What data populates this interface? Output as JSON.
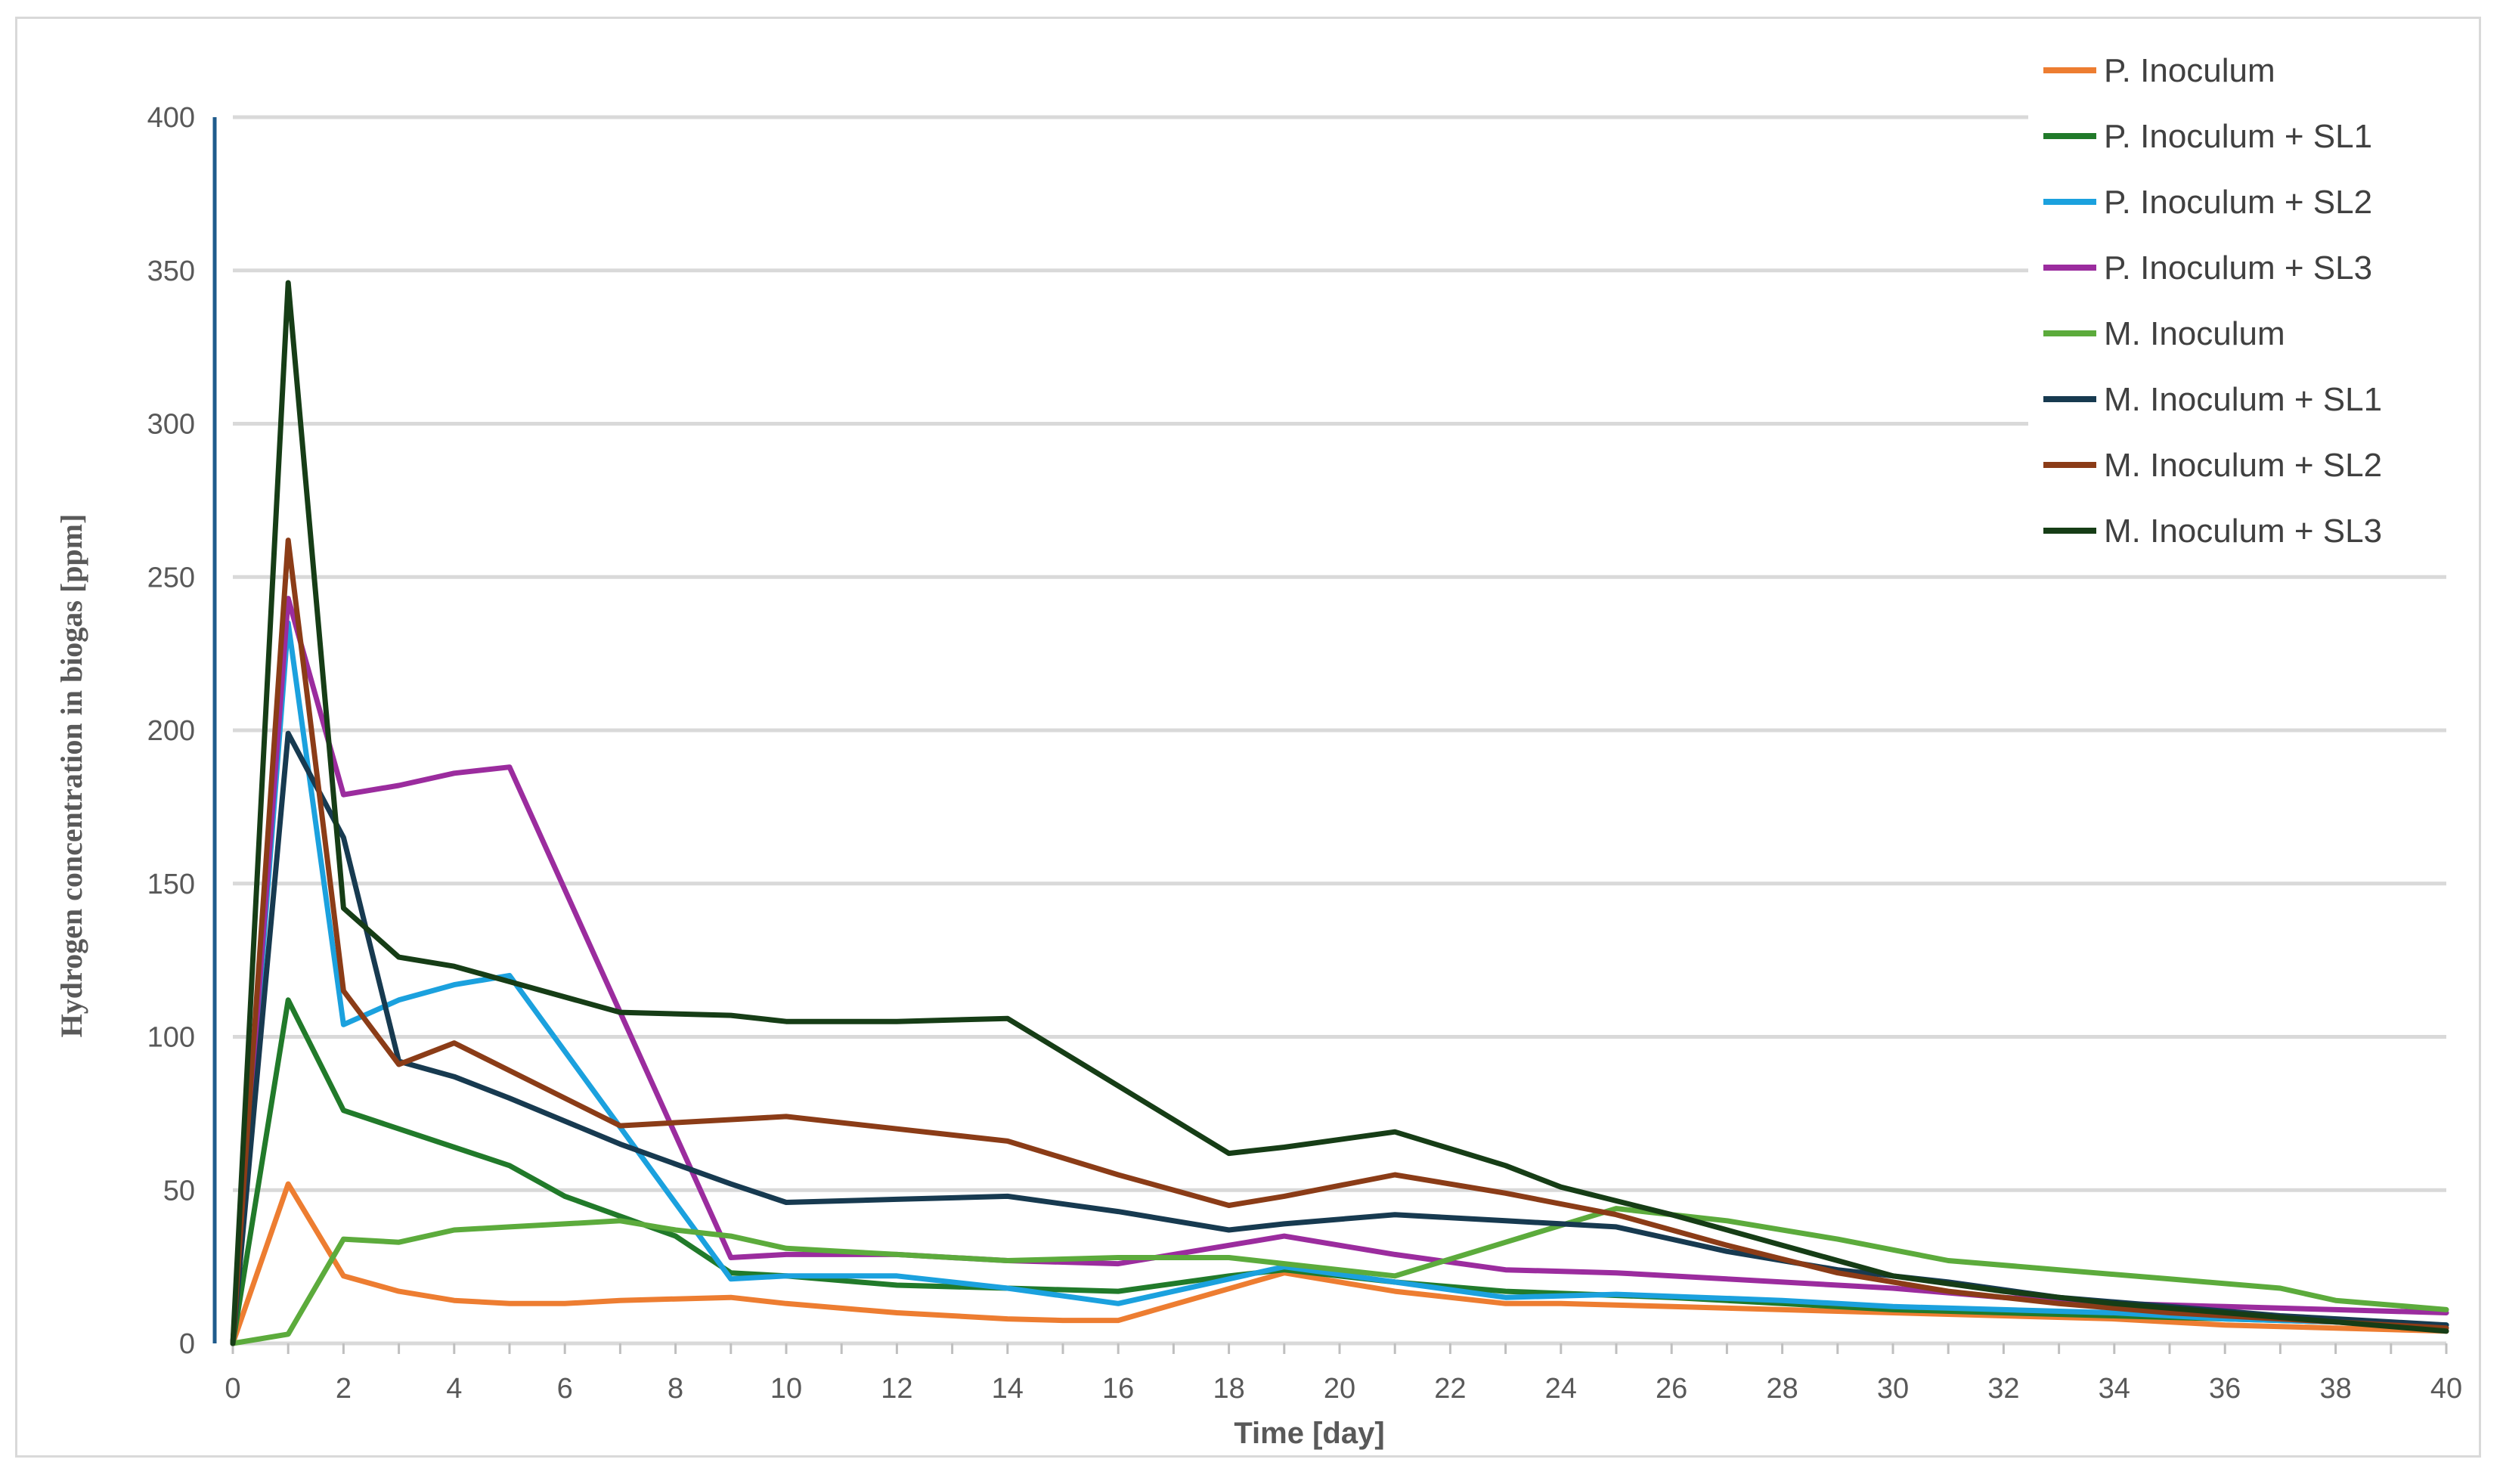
{
  "chart_data": {
    "type": "line",
    "title": "",
    "xlabel": "Time [day]",
    "ylabel": "Hydrogen concentration in biogas [ppm]",
    "xlim": [
      0,
      40
    ],
    "ylim": [
      0,
      400
    ],
    "x_ticks": [
      "0",
      "2",
      "4",
      "6",
      "8",
      "10",
      "12",
      "14",
      "16",
      "18",
      "20",
      "22",
      "24",
      "26",
      "28",
      "30",
      "32",
      "34",
      "36",
      "38",
      "40"
    ],
    "y_ticks": [
      "0",
      "50",
      "100",
      "150",
      "200",
      "250",
      "300",
      "350",
      "400"
    ],
    "grid": "horizontal",
    "legend_position": "top-right",
    "series": [
      {
        "name": "P. Inoculum",
        "color": "#ED7D31",
        "x": [
          0,
          1,
          2,
          3,
          4,
          5,
          6,
          7,
          9,
          10,
          12,
          14,
          15,
          16,
          19,
          21,
          23,
          24,
          26,
          28,
          30,
          32,
          34,
          36,
          38,
          40
        ],
        "y": [
          0,
          52,
          22,
          17,
          14,
          13,
          13,
          14,
          15,
          13,
          10,
          8,
          7.5,
          7.5,
          23,
          17,
          13,
          13,
          12,
          11,
          10,
          9,
          8,
          6,
          5,
          4
        ]
      },
      {
        "name": "P. Inoculum + SL1",
        "color": "#217A2A",
        "x": [
          0,
          1,
          2,
          3,
          4,
          5,
          6,
          8,
          9,
          10,
          12,
          14,
          16,
          18,
          19,
          20,
          21,
          23,
          26,
          28,
          30,
          32,
          34,
          36,
          38,
          40
        ],
        "y": [
          0,
          112,
          76,
          70,
          64,
          58,
          48,
          35,
          23,
          22,
          19,
          18,
          17,
          22,
          24,
          22,
          20,
          17,
          15,
          13,
          11,
          10,
          9,
          8,
          7,
          6
        ]
      },
      {
        "name": "P. Inoculum + SL2",
        "color": "#1BA1DE",
        "x": [
          0,
          1,
          2,
          3,
          4,
          5,
          9,
          10,
          12,
          14,
          16,
          19,
          21,
          23,
          25,
          28,
          30,
          32,
          34,
          36,
          38,
          40
        ],
        "y": [
          0,
          235,
          104,
          112,
          117,
          120,
          21,
          22,
          22,
          18,
          13,
          25,
          20,
          15,
          16,
          14,
          12,
          11,
          10,
          8,
          7,
          6
        ]
      },
      {
        "name": "P. Inoculum + SL3",
        "color": "#9B2C9E",
        "x": [
          0,
          1,
          2,
          3,
          4,
          5,
          9,
          10,
          12,
          14,
          16,
          19,
          21,
          23,
          25,
          27,
          30,
          32,
          34,
          36,
          38,
          40
        ],
        "y": [
          0,
          243,
          179,
          182,
          186,
          188,
          28,
          29,
          29,
          27,
          26,
          35,
          29,
          24,
          23,
          21,
          18,
          15,
          13,
          12,
          11,
          10
        ]
      },
      {
        "name": "M. Inoculum",
        "color": "#5CAB3C",
        "x": [
          0,
          1,
          2,
          3,
          4,
          5,
          6,
          7,
          8,
          9,
          10,
          12,
          14,
          16,
          18,
          19,
          20,
          21,
          23,
          25,
          27,
          29,
          31,
          33,
          35,
          37,
          38,
          40
        ],
        "y": [
          0,
          3,
          34,
          33,
          37,
          38,
          39,
          40,
          37,
          35,
          31,
          29,
          27,
          28,
          28,
          26,
          24,
          22,
          33,
          44,
          40,
          34,
          27,
          24,
          21,
          18,
          14,
          11
        ]
      },
      {
        "name": "M. Inoculum + SL1",
        "color": "#173A50",
        "x": [
          0,
          1,
          2,
          3,
          4,
          5,
          7,
          9,
          10,
          12,
          14,
          16,
          18,
          19,
          21,
          23,
          25,
          27,
          29,
          31,
          33,
          35,
          37,
          39,
          40
        ],
        "y": [
          0,
          199,
          165,
          92,
          87,
          80,
          65,
          52,
          46,
          47,
          48,
          43,
          37,
          39,
          42,
          40,
          38,
          30,
          24,
          20,
          15,
          12,
          9,
          7,
          6
        ]
      },
      {
        "name": "M. Inoculum + SL2",
        "color": "#8B3C17",
        "x": [
          0,
          1,
          2,
          3,
          4,
          5,
          7,
          9,
          10,
          12,
          14,
          16,
          18,
          19,
          21,
          23,
          25,
          27,
          29,
          31,
          33,
          35,
          37,
          39,
          40
        ],
        "y": [
          0,
          262,
          115,
          91,
          98,
          89,
          71,
          73,
          74,
          70,
          66,
          55,
          45,
          48,
          55,
          49,
          42,
          32,
          23,
          17,
          13,
          10,
          8,
          6,
          5
        ]
      },
      {
        "name": "M. Inoculum + SL3",
        "color": "#163D16",
        "x": [
          0,
          1,
          2,
          3,
          4,
          5,
          7,
          9,
          10,
          12,
          14,
          16,
          18,
          19,
          21,
          23,
          24,
          26,
          28,
          30,
          32,
          34,
          36,
          38,
          40
        ],
        "y": [
          0,
          346,
          142,
          126,
          123,
          118,
          108,
          107,
          105,
          105,
          106,
          84,
          62,
          64,
          69,
          58,
          51,
          42,
          32,
          22,
          17,
          13,
          10,
          7,
          4
        ]
      }
    ]
  }
}
